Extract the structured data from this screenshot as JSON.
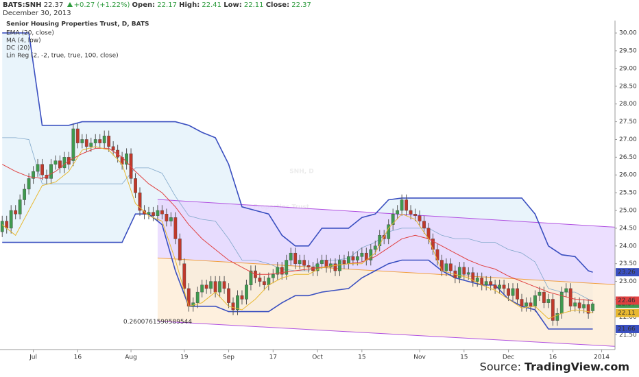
{
  "header": {
    "symbol": "BATS:SNH",
    "change": "+0.27 (+1.22%)",
    "open_label": "Open:",
    "high_label": "High:",
    "low_label": "Low:",
    "close_label": "Close:",
    "date": "December 30, 2013"
  },
  "footer": {
    "source": "Source:",
    "site": "TradingView.com"
  },
  "chart_data": {
    "type": "candlestick",
    "title": "Senior Housing Properties Trust, D, BATS",
    "legend": [
      "EMA (20, close)",
      "MA (4, low)",
      "DC (20)",
      "Lin Reg (2, -2, true, true, 100, close)"
    ],
    "watermark": [
      "SNH, D",
      "Senior Housing Properties Trust"
    ],
    "up_color": "#3f9a4f",
    "down_color": "#c0392b",
    "open": [
      24.4,
      24.7,
      24.5,
      25.0,
      24.9,
      25.3,
      25.6,
      25.9,
      26.1,
      26.3,
      26.0,
      25.9,
      26.3,
      26.4,
      26.2,
      26.5,
      26.4,
      27.3,
      26.9,
      27.0,
      26.8,
      26.9,
      27.0,
      26.9,
      27.1,
      26.8,
      26.7,
      26.5,
      26.3,
      26.6,
      25.9,
      25.5,
      25.0,
      24.9,
      24.95,
      24.85,
      25.0,
      24.9,
      24.7,
      24.8,
      24.2,
      23.5,
      22.8,
      22.3,
      22.4,
      22.7,
      22.9,
      22.8,
      23.0,
      22.7,
      23.0,
      22.8,
      22.4,
      22.2,
      22.6,
      22.5,
      22.9,
      23.3,
      23.1,
      23.0,
      22.9,
      23.1,
      23.2,
      23.4,
      23.2,
      23.6,
      23.8,
      23.5,
      23.6,
      23.45,
      23.4,
      23.3,
      23.5,
      23.6,
      23.4,
      23.5,
      23.3,
      23.6,
      23.5,
      23.7,
      23.6,
      23.7,
      23.8,
      23.6,
      23.9,
      24.0,
      24.3,
      24.2,
      24.6,
      24.9,
      25.0,
      25.3,
      25.0,
      24.9,
      24.85,
      24.7,
      24.5,
      24.2,
      23.9,
      23.6,
      23.3,
      23.5,
      23.3,
      23.1,
      23.4,
      23.2,
      23.25,
      23.0,
      23.1,
      22.9,
      23.0,
      22.9,
      22.8,
      22.9,
      22.8,
      22.6,
      22.8,
      22.5,
      22.3,
      22.4,
      22.3,
      22.6,
      22.7,
      22.4,
      22.5,
      21.9,
      22.1,
      22.7,
      22.8,
      22.3,
      22.4,
      22.25,
      22.35,
      22.17
    ],
    "high": [
      24.85,
      24.85,
      25.15,
      25.15,
      25.45,
      25.75,
      26.05,
      26.25,
      26.45,
      26.45,
      26.15,
      26.45,
      26.55,
      26.55,
      26.65,
      26.65,
      27.45,
      27.45,
      27.15,
      27.15,
      27.05,
      27.15,
      27.15,
      27.25,
      27.25,
      26.95,
      26.85,
      26.65,
      26.75,
      26.75,
      26.05,
      25.65,
      25.15,
      25.1,
      25.1,
      25.15,
      25.15,
      25.05,
      24.95,
      24.95,
      24.35,
      23.65,
      22.95,
      22.55,
      22.85,
      23.05,
      23.05,
      23.15,
      23.15,
      23.15,
      23.15,
      22.95,
      22.55,
      22.75,
      22.75,
      23.05,
      23.45,
      23.45,
      23.25,
      23.15,
      23.25,
      23.35,
      23.55,
      23.55,
      23.75,
      23.95,
      23.95,
      23.75,
      23.75,
      23.6,
      23.55,
      23.65,
      23.75,
      23.75,
      23.65,
      23.65,
      23.75,
      23.75,
      23.85,
      23.85,
      23.85,
      23.95,
      23.95,
      24.05,
      24.15,
      24.45,
      24.45,
      24.75,
      25.05,
      25.15,
      25.45,
      25.45,
      25.15,
      25.05,
      25.0,
      24.85,
      24.65,
      24.35,
      24.05,
      23.75,
      23.65,
      23.65,
      23.45,
      23.55,
      23.55,
      23.4,
      23.4,
      23.25,
      23.25,
      23.15,
      23.15,
      23.05,
      23.05,
      23.05,
      22.95,
      22.95,
      22.95,
      22.65,
      22.55,
      22.55,
      22.75,
      22.85,
      22.85,
      22.65,
      22.65,
      22.25,
      22.85,
      22.95,
      22.95,
      22.55,
      22.55,
      22.5,
      22.5,
      22.41
    ],
    "low": [
      24.25,
      24.35,
      24.35,
      24.75,
      24.75,
      25.15,
      25.45,
      25.75,
      25.95,
      25.85,
      25.75,
      25.75,
      26.15,
      26.05,
      26.05,
      26.15,
      26.25,
      26.75,
      26.75,
      26.65,
      26.65,
      26.75,
      26.75,
      26.75,
      26.65,
      26.55,
      26.35,
      26.15,
      26.15,
      25.75,
      25.35,
      24.85,
      24.75,
      24.75,
      24.7,
      24.7,
      24.75,
      24.55,
      24.55,
      24.05,
      23.45,
      22.65,
      22.15,
      22.15,
      22.25,
      22.55,
      22.65,
      22.65,
      22.55,
      22.55,
      22.65,
      22.25,
      22.05,
      22.05,
      22.35,
      22.35,
      22.75,
      22.95,
      22.85,
      22.75,
      22.75,
      22.95,
      23.05,
      23.05,
      23.05,
      23.45,
      23.35,
      23.35,
      23.3,
      23.25,
      23.15,
      23.15,
      23.35,
      23.25,
      23.25,
      23.15,
      23.15,
      23.35,
      23.35,
      23.45,
      23.45,
      23.55,
      23.45,
      23.45,
      23.75,
      23.85,
      24.05,
      24.05,
      24.45,
      24.75,
      24.85,
      24.85,
      24.75,
      24.7,
      24.55,
      24.35,
      24.05,
      23.75,
      23.45,
      23.15,
      23.15,
      23.15,
      22.95,
      22.95,
      23.05,
      23.05,
      22.85,
      22.85,
      22.75,
      22.75,
      22.75,
      22.65,
      22.65,
      22.65,
      22.45,
      22.45,
      22.35,
      22.15,
      22.15,
      22.15,
      22.15,
      22.45,
      22.25,
      22.25,
      21.75,
      21.75,
      21.95,
      22.55,
      22.15,
      22.15,
      22.1,
      22.1,
      21.95,
      22.11
    ],
    "close": [
      24.7,
      24.5,
      25.0,
      24.9,
      25.3,
      25.6,
      25.9,
      26.1,
      26.3,
      26.0,
      25.9,
      26.3,
      26.4,
      26.2,
      26.5,
      26.3,
      27.3,
      26.9,
      27.0,
      26.8,
      26.9,
      27.0,
      26.9,
      27.1,
      26.8,
      26.7,
      26.5,
      26.3,
      26.6,
      25.9,
      25.5,
      25.0,
      24.9,
      24.95,
      24.85,
      25.0,
      24.9,
      24.7,
      24.8,
      24.2,
      23.6,
      22.8,
      22.3,
      22.4,
      22.7,
      22.9,
      22.8,
      23.0,
      22.7,
      23.0,
      22.8,
      22.4,
      22.2,
      22.6,
      22.5,
      22.9,
      23.3,
      23.1,
      23.0,
      22.9,
      23.1,
      23.2,
      23.4,
      23.2,
      23.6,
      23.8,
      23.5,
      23.6,
      23.45,
      23.4,
      23.3,
      23.5,
      23.6,
      23.4,
      23.5,
      23.3,
      23.6,
      23.5,
      23.7,
      23.6,
      23.7,
      23.8,
      23.6,
      23.9,
      24.0,
      24.3,
      24.2,
      24.6,
      24.9,
      25.0,
      25.3,
      25.0,
      24.9,
      24.85,
      24.7,
      24.5,
      24.2,
      23.9,
      23.6,
      23.3,
      23.5,
      23.3,
      23.1,
      23.4,
      23.2,
      23.25,
      23.0,
      23.1,
      22.9,
      23.0,
      22.9,
      22.8,
      22.9,
      22.8,
      22.6,
      22.8,
      22.5,
      22.3,
      22.4,
      22.3,
      22.6,
      22.7,
      22.4,
      22.5,
      21.9,
      22.1,
      22.7,
      22.8,
      22.3,
      22.4,
      22.25,
      22.35,
      22.1,
      22.37
    ],
    "xlim": [
      -0.5,
      138
    ],
    "xticks": [
      {
        "value": 7,
        "label": "Jul"
      },
      {
        "value": 17,
        "label": "16"
      },
      {
        "value": 29,
        "label": "Aug"
      },
      {
        "value": 41,
        "label": "19"
      },
      {
        "value": 51,
        "label": "Sep"
      },
      {
        "value": 61,
        "label": "17"
      },
      {
        "value": 71,
        "label": "Oct"
      },
      {
        "value": 81,
        "label": "15"
      },
      {
        "value": 94,
        "label": "Nov"
      },
      {
        "value": 104,
        "label": "15"
      },
      {
        "value": 114,
        "label": "Dec"
      },
      {
        "value": 124,
        "label": "16"
      },
      {
        "value": 135,
        "label": "2014"
      }
    ],
    "ylim": [
      21.08,
      30.35
    ],
    "yticks": [
      {
        "value": 21.5,
        "label": "21.50"
      },
      {
        "value": 22,
        "label": "22.00"
      },
      {
        "value": 22.5,
        "label": "22.50"
      },
      {
        "value": 23,
        "label": "23.00"
      },
      {
        "value": 23.5,
        "label": "23.50"
      },
      {
        "value": 24,
        "label": "24.00"
      },
      {
        "value": 24.5,
        "label": "24.50"
      },
      {
        "value": 25,
        "label": "25.00"
      },
      {
        "value": 25.5,
        "label": "25.50"
      },
      {
        "value": 26,
        "label": "26.00"
      },
      {
        "value": 26.5,
        "label": "26.50"
      },
      {
        "value": 27,
        "label": "27.00"
      },
      {
        "value": 27.5,
        "label": "27.50"
      },
      {
        "value": 28,
        "label": "28.00"
      },
      {
        "value": 28.5,
        "label": "28.50"
      },
      {
        "value": 29,
        "label": "29.00"
      },
      {
        "value": 29.5,
        "label": "29.50"
      },
      {
        "value": 30,
        "label": "30.00"
      }
    ],
    "overlays": {
      "x": [
        0,
        3,
        6,
        9,
        12,
        15,
        18,
        21,
        24,
        27,
        30,
        33,
        36,
        39,
        42,
        45,
        48,
        51,
        54,
        57,
        60,
        63,
        66,
        69,
        72,
        75,
        78,
        81,
        84,
        87,
        90,
        93,
        96,
        99,
        102,
        105,
        108,
        111,
        114,
        117,
        120,
        123,
        126,
        129,
        132,
        133
      ],
      "dc_color": "#3a4fc0",
      "dc_fill": "#e3f1fa",
      "basis_color": "#7fa6c9",
      "dc_upper": [
        30.0,
        30.0,
        30.0,
        27.4,
        27.4,
        27.4,
        27.5,
        27.5,
        27.5,
        27.5,
        27.5,
        27.5,
        27.5,
        27.5,
        27.4,
        27.2,
        27.05,
        26.3,
        25.1,
        25.0,
        24.9,
        24.3,
        24.0,
        24.0,
        24.5,
        24.5,
        24.5,
        24.8,
        24.9,
        25.3,
        25.35,
        25.35,
        25.35,
        25.35,
        25.35,
        25.35,
        25.35,
        25.35,
        25.35,
        25.35,
        24.9,
        24.0,
        23.75,
        23.7,
        23.3,
        23.26
      ],
      "dc_basis": [
        27.05,
        27.05,
        27.0,
        25.75,
        25.75,
        25.75,
        25.75,
        25.75,
        25.75,
        25.75,
        26.2,
        26.2,
        26.05,
        25.4,
        24.85,
        24.75,
        24.7,
        24.2,
        23.6,
        23.6,
        23.5,
        23.35,
        23.3,
        23.3,
        23.6,
        23.6,
        23.65,
        23.95,
        24.1,
        24.4,
        24.5,
        24.5,
        24.5,
        24.3,
        24.2,
        24.2,
        24.1,
        24.1,
        23.9,
        23.8,
        23.55,
        22.8,
        22.7,
        22.7,
        22.5,
        22.46
      ],
      "dc_lower": [
        24.1,
        24.1,
        24.1,
        24.1,
        24.1,
        24.1,
        24.1,
        24.1,
        24.1,
        24.1,
        24.9,
        24.9,
        24.6,
        23.3,
        22.3,
        22.3,
        22.3,
        22.15,
        22.15,
        22.15,
        22.15,
        22.4,
        22.6,
        22.6,
        22.7,
        22.75,
        22.8,
        23.1,
        23.3,
        23.5,
        23.6,
        23.6,
        23.6,
        23.3,
        23.1,
        23.0,
        22.9,
        22.9,
        22.5,
        22.3,
        22.2,
        21.66,
        21.66,
        21.66,
        21.66,
        21.66
      ],
      "ema": {
        "color": "#e04040",
        "values": [
          26.3,
          26.1,
          25.95,
          25.9,
          26.1,
          26.4,
          26.6,
          26.75,
          26.75,
          26.5,
          26.1,
          25.75,
          25.5,
          25.1,
          24.6,
          24.2,
          23.9,
          23.6,
          23.4,
          23.2,
          23.2,
          23.25,
          23.3,
          23.35,
          23.4,
          23.45,
          23.5,
          23.55,
          23.7,
          23.95,
          24.2,
          24.3,
          24.2,
          24.0,
          23.8,
          23.6,
          23.45,
          23.35,
          23.15,
          23.0,
          22.85,
          22.7,
          22.6,
          22.5,
          22.47,
          22.46
        ]
      },
      "ma": {
        "color": "#e8b830",
        "values": [
          24.6,
          24.3,
          25.0,
          25.7,
          25.8,
          26.1,
          26.7,
          26.8,
          26.7,
          26.3,
          25.2,
          24.85,
          24.7,
          23.6,
          22.3,
          22.4,
          22.7,
          22.3,
          22.2,
          22.5,
          22.9,
          23.1,
          23.2,
          23.2,
          23.4,
          23.45,
          23.5,
          23.5,
          23.8,
          24.5,
          24.9,
          24.75,
          24.2,
          23.3,
          23.2,
          23.1,
          22.9,
          22.75,
          22.5,
          22.25,
          22.3,
          21.95,
          22.1,
          22.2,
          22.15,
          22.11
        ]
      }
    },
    "lin_reg": {
      "x": [
        35,
        138
      ],
      "upper": [
        25.31,
        24.53
      ],
      "middle": [
        23.66,
        22.91
      ],
      "lower": [
        21.88,
        21.17
      ],
      "line_color": "#b050e0",
      "middle_color": "#f0a040",
      "upper_fill": "#e6d4ff",
      "lower_fill": "#fdebd3",
      "label": 0.2600761590589544
    }
  }
}
